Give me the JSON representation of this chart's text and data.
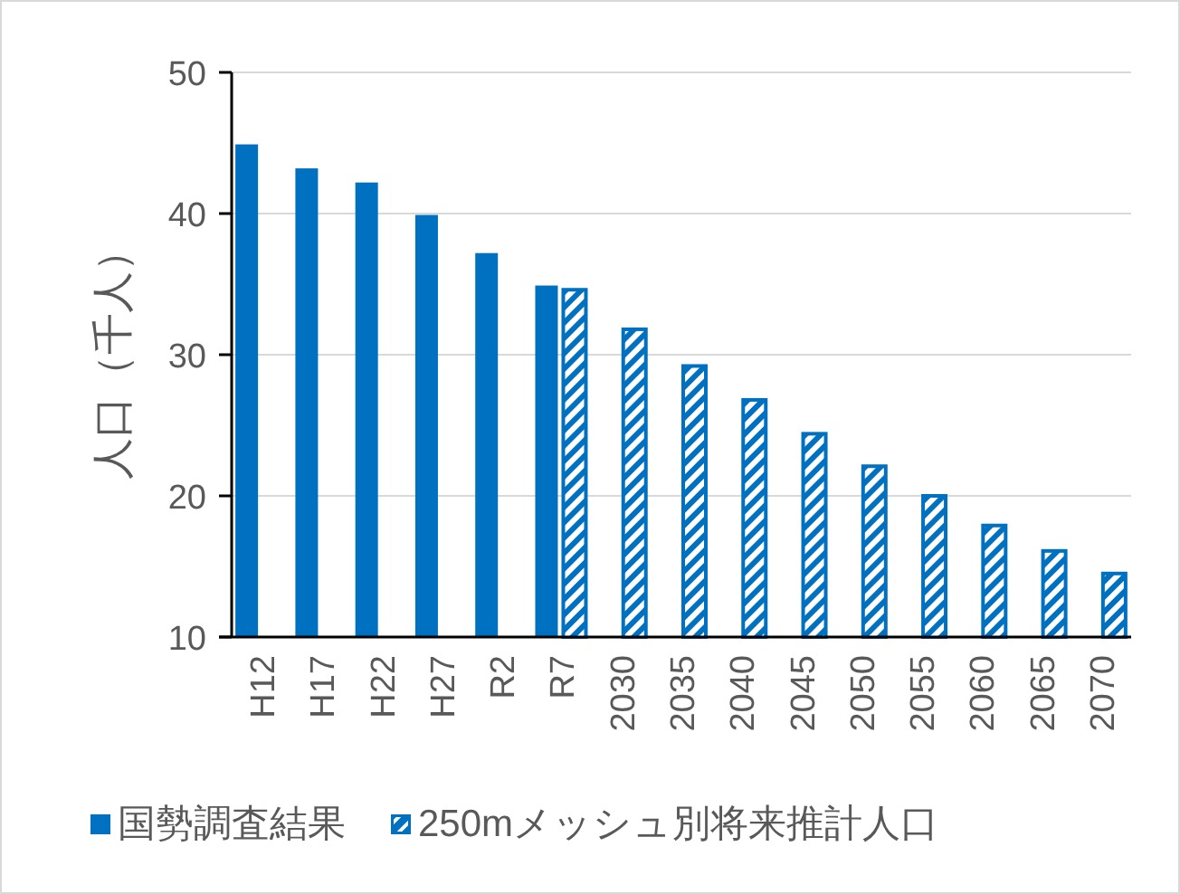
{
  "chart_data": {
    "type": "bar",
    "ylabel": "人口（千人）",
    "categories": [
      "H12",
      "H17",
      "H22",
      "H27",
      "R2",
      "R7",
      "2030",
      "2035",
      "2040",
      "2045",
      "2050",
      "2055",
      "2060",
      "2065",
      "2070"
    ],
    "series": [
      {
        "name": "国勢調査結果",
        "color": "#0070c0",
        "values": [
          44.9,
          43.2,
          42.2,
          39.9,
          37.2,
          34.9,
          null,
          null,
          null,
          null,
          null,
          null,
          null,
          null,
          null
        ]
      },
      {
        "name": "250mメッシュ別将来推計人口",
        "color": "#0070c0",
        "values": [
          null,
          null,
          null,
          null,
          null,
          34.6,
          31.8,
          29.2,
          26.8,
          24.4,
          22.1,
          20.0,
          17.9,
          16.1,
          14.5
        ]
      }
    ],
    "ylim": [
      10,
      50
    ],
    "yticks": [
      10,
      20,
      30,
      40,
      50
    ],
    "grid": "y",
    "legend": "bottom"
  }
}
